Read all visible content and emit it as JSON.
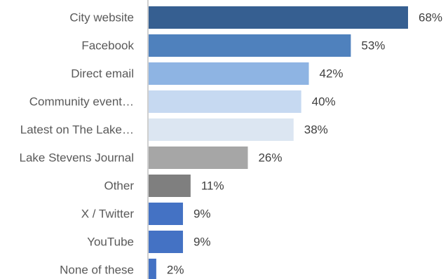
{
  "chart_data": {
    "type": "bar",
    "orientation": "horizontal",
    "categories": [
      "City website",
      "Facebook",
      "Direct email",
      "Community event…",
      "Latest on The Lake…",
      "Lake Stevens Journal",
      "Other",
      "X / Twitter",
      "YouTube",
      "None of these"
    ],
    "values": [
      68,
      53,
      42,
      40,
      38,
      26,
      11,
      9,
      9,
      2
    ],
    "value_labels": [
      "68%",
      "53%",
      "42%",
      "40%",
      "38%",
      "26%",
      "11%",
      "9%",
      "9%",
      "2%"
    ],
    "colors": [
      "#365F91",
      "#4F81BD",
      "#8EB4E3",
      "#C6D9F1",
      "#DCE6F2",
      "#A6A6A6",
      "#7F7F7F",
      "#4472C4",
      "#4472C4",
      "#4472C4"
    ],
    "axis_color": "#BFBFBF",
    "xlim": [
      0,
      100
    ],
    "unit": "%",
    "grid": false,
    "legend": "none"
  }
}
